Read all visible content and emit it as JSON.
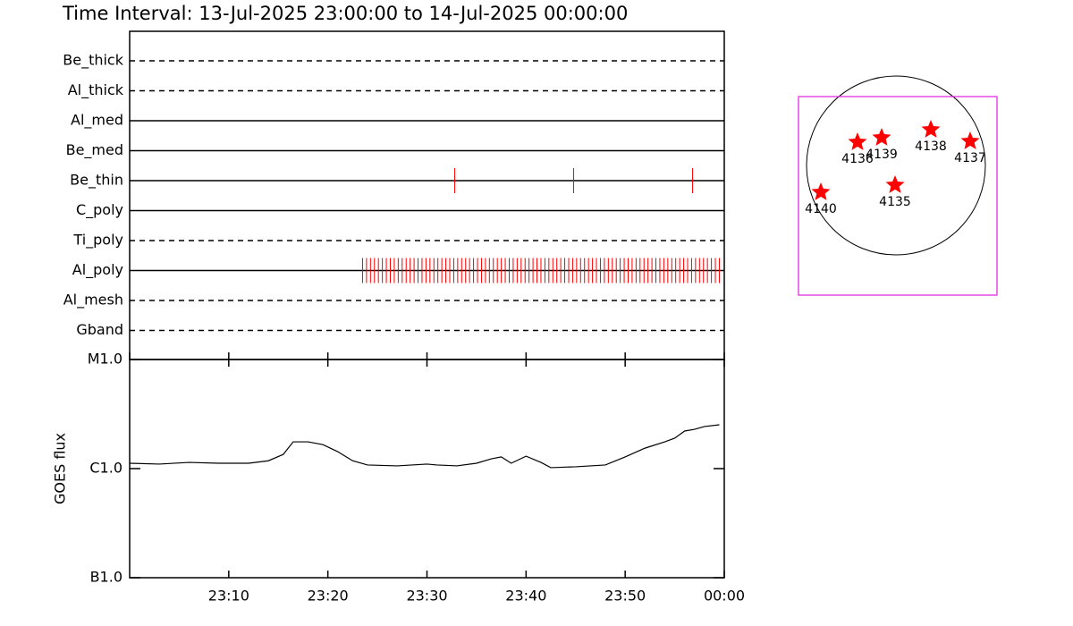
{
  "chart_data": [
    {
      "type": "timeline",
      "title": "Time Interval: 13-Jul-2025 23:00:00 to 14-Jul-2025 00:00:00",
      "xlim": [
        0,
        60
      ],
      "xticks": [
        0,
        10,
        20,
        30,
        40,
        50,
        60
      ],
      "mark_color": "#ff0000",
      "rows": [
        {
          "name": "Be_thick",
          "dashed": true,
          "times": []
        },
        {
          "name": "Al_thick",
          "dashed": true,
          "times": []
        },
        {
          "name": "Al_med",
          "dashed": false,
          "times": []
        },
        {
          "name": "Be_med",
          "dashed": false,
          "times": []
        },
        {
          "name": "Be_thin",
          "dashed": false,
          "times": [
            32.8,
            44.8,
            56.8
          ]
        },
        {
          "name": "C_poly",
          "dashed": false,
          "times": []
        },
        {
          "name": "Ti_poly",
          "dashed": true,
          "times": []
        },
        {
          "name": "Al_poly",
          "dashed": false,
          "times": [
            23.5,
            23.9,
            24.3,
            24.7,
            25.1,
            25.5,
            25.9,
            26.3,
            26.7,
            27.1,
            27.5,
            27.9,
            28.3,
            28.7,
            29.1,
            29.5,
            29.9,
            30.3,
            30.7,
            31.1,
            31.5,
            31.9,
            32.3,
            32.7,
            33.1,
            33.5,
            33.9,
            34.3,
            34.7,
            35.1,
            35.5,
            35.9,
            36.3,
            36.7,
            37.1,
            37.5,
            37.9,
            38.3,
            38.7,
            39.1,
            39.5,
            39.9,
            40.3,
            40.7,
            41.1,
            41.5,
            41.9,
            42.3,
            42.7,
            43.1,
            43.5,
            43.9,
            44.3,
            44.7,
            45.1,
            45.5,
            45.9,
            46.3,
            46.7,
            47.1,
            47.5,
            47.9,
            48.3,
            48.7,
            49.1,
            49.5,
            49.9,
            50.3,
            50.7,
            51.1,
            51.5,
            51.9,
            52.3,
            52.7,
            53.1,
            53.5,
            53.9,
            54.3,
            54.7,
            55.1,
            55.5,
            55.9,
            56.3,
            56.7,
            57.1,
            57.5,
            57.9,
            58.3,
            58.7,
            59.1,
            59.5
          ]
        },
        {
          "name": "Al_mesh",
          "dashed": true,
          "times": []
        },
        {
          "name": "Gband",
          "dashed": true,
          "times": []
        }
      ]
    },
    {
      "type": "line",
      "ylabel": "GOES flux",
      "log_y": true,
      "color": "#000000",
      "xlim": [
        0,
        60
      ],
      "xticks": [
        {
          "value": 10,
          "label": "23:10"
        },
        {
          "value": 20,
          "label": "23:20"
        },
        {
          "value": 30,
          "label": "23:30"
        },
        {
          "value": 40,
          "label": "23:40"
        },
        {
          "value": 50,
          "label": "23:50"
        },
        {
          "value": 60,
          "label": "00:00"
        }
      ],
      "ylim": [
        1e-07,
        1e-05
      ],
      "yticks": [
        {
          "value": 1e-07,
          "label": "B1.0"
        },
        {
          "value": 1e-06,
          "label": "C1.0"
        },
        {
          "value": 1e-05,
          "label": "M1.0"
        }
      ],
      "x": [
        0,
        3,
        6,
        9,
        12,
        14,
        15.5,
        16.5,
        18,
        19.5,
        21,
        22.5,
        24,
        27,
        30,
        31,
        33,
        35,
        36.5,
        37.5,
        38.5,
        40,
        41.5,
        42.5,
        45,
        48,
        50,
        52,
        54,
        55,
        56,
        57,
        58,
        59.5
      ],
      "values": [
        1.12e-06,
        1.1e-06,
        1.14e-06,
        1.12e-06,
        1.12e-06,
        1.18e-06,
        1.35e-06,
        1.76e-06,
        1.76e-06,
        1.66e-06,
        1.43e-06,
        1.18e-06,
        1.08e-06,
        1.06e-06,
        1.1e-06,
        1.08e-06,
        1.06e-06,
        1.12e-06,
        1.23e-06,
        1.28e-06,
        1.12e-06,
        1.3e-06,
        1.14e-06,
        1.02e-06,
        1.04e-06,
        1.08e-06,
        1.28e-06,
        1.54e-06,
        1.76e-06,
        1.9e-06,
        2.21e-06,
        2.29e-06,
        2.43e-06,
        2.52e-06
      ]
    },
    {
      "type": "disk",
      "color": "#ff0000",
      "regions": [
        {
          "label": "4136",
          "x": -0.43,
          "y": 0.26
        },
        {
          "label": "4139",
          "x": -0.16,
          "y": 0.31
        },
        {
          "label": "4138",
          "x": 0.39,
          "y": 0.4
        },
        {
          "label": "4137",
          "x": 0.83,
          "y": 0.27
        },
        {
          "label": "4135",
          "x": -0.01,
          "y": -0.22
        },
        {
          "label": "4140",
          "x": -0.84,
          "y": -0.3
        }
      ]
    }
  ]
}
